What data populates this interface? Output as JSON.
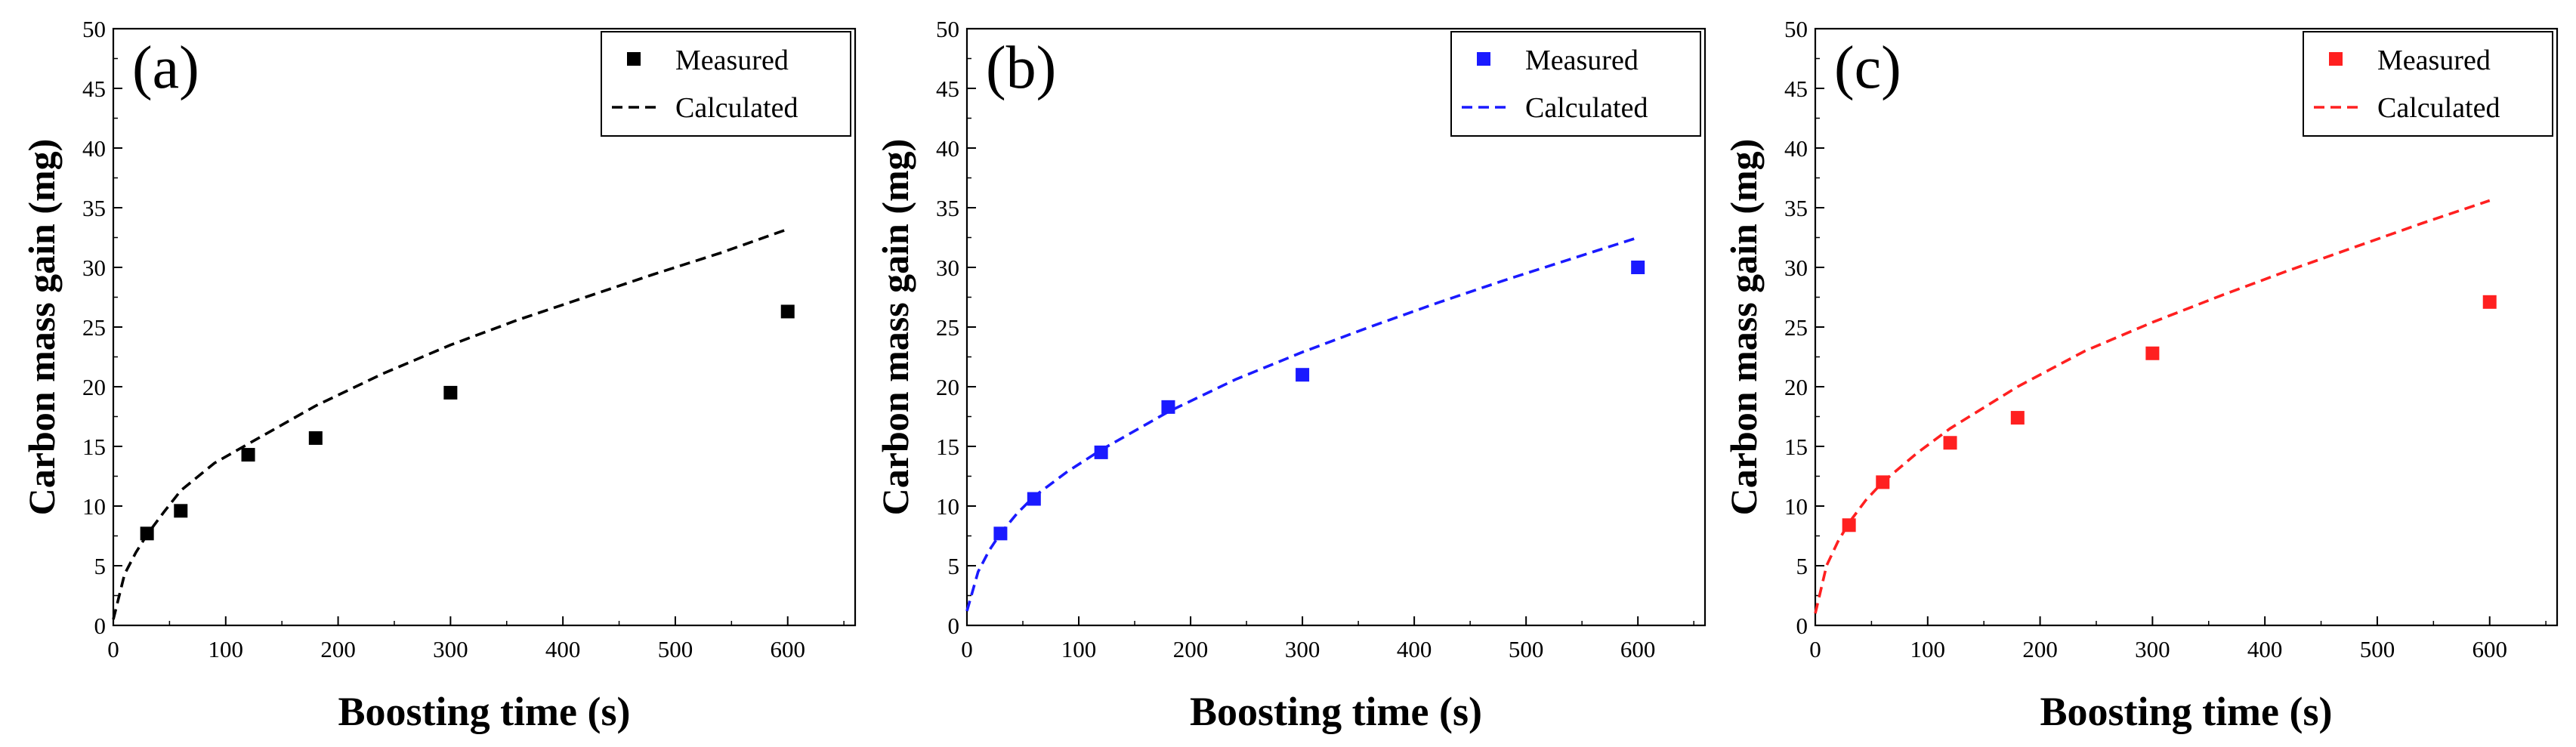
{
  "chart_data": [
    {
      "type": "scatter",
      "panel_label": "(a)",
      "xlabel": "Boosting time (s)",
      "ylabel": "Carbon mass gain (mg)",
      "xlim": [
        0,
        660
      ],
      "ylim": [
        0,
        50
      ],
      "xticks": [
        0,
        100,
        200,
        300,
        400,
        500,
        600
      ],
      "yticks": [
        0,
        5,
        10,
        15,
        20,
        25,
        30,
        35,
        40,
        45,
        50
      ],
      "color": "#000000",
      "legend_position": "top-right",
      "series": [
        {
          "name": "Measured",
          "kind": "scatter",
          "x": [
            30,
            60,
            120,
            180,
            300,
            600
          ],
          "y": [
            7.7,
            9.6,
            14.3,
            15.7,
            19.5,
            26.3
          ]
        },
        {
          "name": "Calculated",
          "kind": "line",
          "x": [
            0,
            10,
            20,
            30,
            45,
            60,
            90,
            120,
            180,
            240,
            300,
            360,
            420,
            480,
            540,
            600
          ],
          "y": [
            0.5,
            4.3,
            6.1,
            7.6,
            9.5,
            11.3,
            13.6,
            15.2,
            18.4,
            21.1,
            23.5,
            25.6,
            27.5,
            29.4,
            31.2,
            33.2
          ]
        }
      ]
    },
    {
      "type": "scatter",
      "panel_label": "(b)",
      "xlabel": "Boosting time (s)",
      "ylabel": "Carbon mass gain (mg)",
      "xlim": [
        0,
        660
      ],
      "ylim": [
        0,
        50
      ],
      "xticks": [
        0,
        100,
        200,
        300,
        400,
        500,
        600
      ],
      "yticks": [
        0,
        5,
        10,
        15,
        20,
        25,
        30,
        35,
        40,
        45,
        50
      ],
      "color": "#1a1aff",
      "legend_position": "top-right",
      "series": [
        {
          "name": "Measured",
          "kind": "scatter",
          "x": [
            30,
            60,
            120,
            180,
            300,
            600
          ],
          "y": [
            7.7,
            10.6,
            14.5,
            18.3,
            21.0,
            30.0
          ]
        },
        {
          "name": "Calculated",
          "kind": "line",
          "x": [
            0,
            10,
            20,
            30,
            45,
            60,
            90,
            120,
            180,
            240,
            300,
            360,
            420,
            480,
            540,
            600
          ],
          "y": [
            1.2,
            4.5,
            6.3,
            7.7,
            9.4,
            10.8,
            12.9,
            14.7,
            17.9,
            20.6,
            22.9,
            25.0,
            27.0,
            28.9,
            30.7,
            32.5
          ]
        }
      ]
    },
    {
      "type": "scatter",
      "panel_label": "(c)",
      "xlabel": "Boosting time (s)",
      "ylabel": "Carbon mass gain (mg)",
      "xlim": [
        0,
        660
      ],
      "ylim": [
        0,
        50
      ],
      "xticks": [
        0,
        100,
        200,
        300,
        400,
        500,
        600
      ],
      "yticks": [
        0,
        5,
        10,
        15,
        20,
        25,
        30,
        35,
        40,
        45,
        50
      ],
      "color": "#ff2020",
      "legend_position": "top-right",
      "series": [
        {
          "name": "Measured",
          "kind": "scatter",
          "x": [
            30,
            60,
            120,
            180,
            300,
            600
          ],
          "y": [
            8.4,
            12.0,
            15.3,
            17.4,
            22.8,
            27.1
          ]
        },
        {
          "name": "Calculated",
          "kind": "line",
          "x": [
            0,
            10,
            20,
            30,
            45,
            60,
            90,
            120,
            180,
            240,
            300,
            360,
            420,
            480,
            540,
            600
          ],
          "y": [
            1.0,
            5.0,
            7.0,
            8.6,
            10.5,
            12.0,
            14.4,
            16.5,
            20.0,
            23.0,
            25.4,
            27.6,
            29.7,
            31.7,
            33.7,
            35.6
          ]
        }
      ]
    }
  ]
}
